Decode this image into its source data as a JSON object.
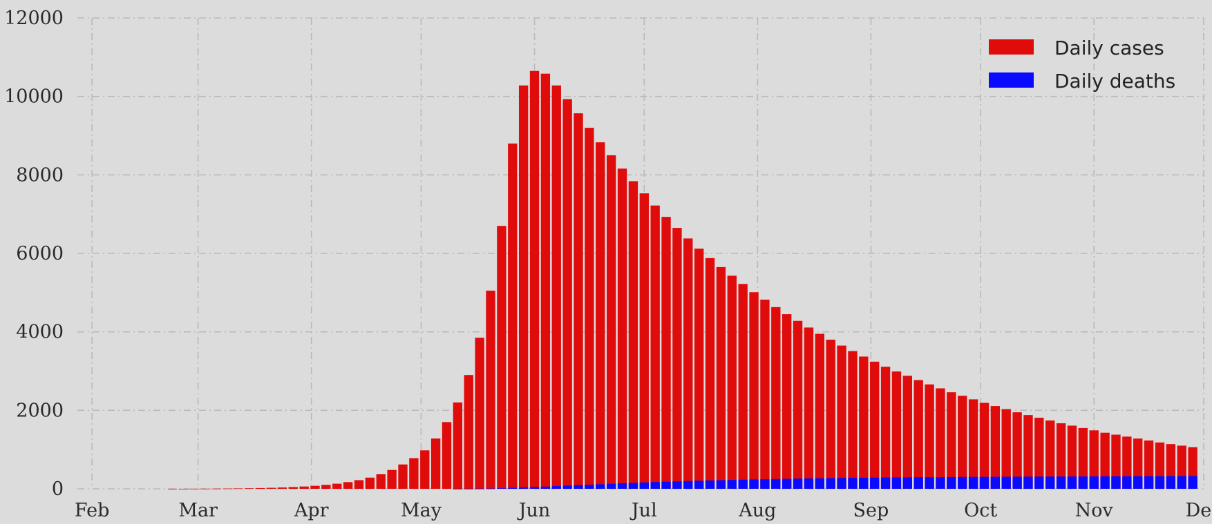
{
  "chart_data": {
    "type": "bar",
    "stacked": "overlay",
    "x_unit": "date",
    "x": [
      "2020-02-23",
      "2020-02-26",
      "2020-02-29",
      "2020-03-03",
      "2020-03-06",
      "2020-03-09",
      "2020-03-12",
      "2020-03-15",
      "2020-03-18",
      "2020-03-21",
      "2020-03-24",
      "2020-03-27",
      "2020-03-30",
      "2020-04-02",
      "2020-04-05",
      "2020-04-08",
      "2020-04-11",
      "2020-04-14",
      "2020-04-17",
      "2020-04-20",
      "2020-04-23",
      "2020-04-26",
      "2020-04-29",
      "2020-05-02",
      "2020-05-05",
      "2020-05-08",
      "2020-05-11",
      "2020-05-14",
      "2020-05-17",
      "2020-05-20",
      "2020-05-23",
      "2020-05-26",
      "2020-05-29",
      "2020-06-01",
      "2020-06-04",
      "2020-06-07",
      "2020-06-10",
      "2020-06-13",
      "2020-06-16",
      "2020-06-19",
      "2020-06-22",
      "2020-06-25",
      "2020-06-28",
      "2020-07-01",
      "2020-07-04",
      "2020-07-07",
      "2020-07-10",
      "2020-07-13",
      "2020-07-16",
      "2020-07-19",
      "2020-07-22",
      "2020-07-25",
      "2020-07-28",
      "2020-07-31",
      "2020-08-03",
      "2020-08-06",
      "2020-08-09",
      "2020-08-12",
      "2020-08-15",
      "2020-08-18",
      "2020-08-21",
      "2020-08-24",
      "2020-08-27",
      "2020-08-30",
      "2020-09-02",
      "2020-09-05",
      "2020-09-08",
      "2020-09-11",
      "2020-09-14",
      "2020-09-17",
      "2020-09-20",
      "2020-09-23",
      "2020-09-26",
      "2020-09-29",
      "2020-10-02",
      "2020-10-05",
      "2020-10-08",
      "2020-10-11",
      "2020-10-14",
      "2020-10-17",
      "2020-10-20",
      "2020-10-23",
      "2020-10-26",
      "2020-10-29",
      "2020-11-01",
      "2020-11-04",
      "2020-11-07",
      "2020-11-10",
      "2020-11-13",
      "2020-11-16",
      "2020-11-19",
      "2020-11-22",
      "2020-11-25",
      "2020-11-28"
    ],
    "series": [
      {
        "name": "Daily cases",
        "color": "#e00b0b",
        "values": [
          1,
          1,
          2,
          3,
          5,
          7,
          10,
          14,
          19,
          25,
          33,
          44,
          58,
          76,
          100,
          130,
          170,
          220,
          285,
          370,
          480,
          620,
          780,
          980,
          1280,
          1700,
          2200,
          2900,
          3850,
          5050,
          6700,
          8800,
          10280,
          10650,
          10580,
          10280,
          9930,
          9570,
          9200,
          8830,
          8500,
          8160,
          7840,
          7530,
          7220,
          6930,
          6650,
          6380,
          6120,
          5880,
          5650,
          5430,
          5220,
          5010,
          4820,
          4630,
          4450,
          4280,
          4110,
          3950,
          3800,
          3650,
          3510,
          3370,
          3240,
          3110,
          2990,
          2880,
          2770,
          2660,
          2560,
          2460,
          2370,
          2280,
          2190,
          2110,
          2030,
          1950,
          1880,
          1810,
          1740,
          1670,
          1610,
          1550,
          1490,
          1430,
          1380,
          1330,
          1280,
          1230,
          1180,
          1140,
          1100,
          1060
        ]
      },
      {
        "name": "Daily deaths",
        "color": "#0a0aff",
        "values": [
          0,
          0,
          0,
          0,
          0,
          0,
          0,
          0,
          0,
          0,
          0,
          0,
          0,
          0,
          0,
          0,
          0,
          0,
          0,
          0,
          0,
          0,
          0,
          0,
          0,
          0,
          1,
          2,
          4,
          8,
          14,
          22,
          32,
          44,
          56,
          68,
          80,
          92,
          104,
          116,
          128,
          140,
          151,
          161,
          171,
          180,
          189,
          197,
          205,
          212,
          219,
          226,
          232,
          238,
          244,
          249,
          254,
          259,
          263,
          267,
          271,
          275,
          278,
          281,
          284,
          287,
          290,
          292,
          294,
          296,
          298,
          300,
          302,
          304,
          305,
          306,
          307,
          308,
          309,
          310,
          311,
          312,
          313,
          314,
          315,
          316,
          317,
          318,
          319,
          320,
          321,
          322,
          323,
          324
        ]
      }
    ],
    "title": "",
    "xlabel": "",
    "ylabel": "",
    "ylim": [
      0,
      12000
    ],
    "xlim": [
      "2020-01-28",
      "2020-12-01"
    ],
    "yticks": [
      0,
      2000,
      4000,
      6000,
      8000,
      10000,
      12000
    ],
    "yticklabels": [
      "0",
      "2000",
      "4000",
      "6000",
      "8000",
      "10000",
      "12000"
    ],
    "xticks": [
      "2020-02-01",
      "2020-03-01",
      "2020-04-01",
      "2020-05-01",
      "2020-06-01",
      "2020-07-01",
      "2020-08-01",
      "2020-09-01",
      "2020-10-01",
      "2020-11-01",
      "2020-12-01"
    ],
    "xticklabels": [
      "Feb",
      "Mar",
      "Apr",
      "May",
      "Jun",
      "Jul",
      "Aug",
      "Sep",
      "Oct",
      "Nov",
      "Dec"
    ],
    "grid": true,
    "legend_position": "top-right",
    "background_color": "#dcdcdc"
  }
}
